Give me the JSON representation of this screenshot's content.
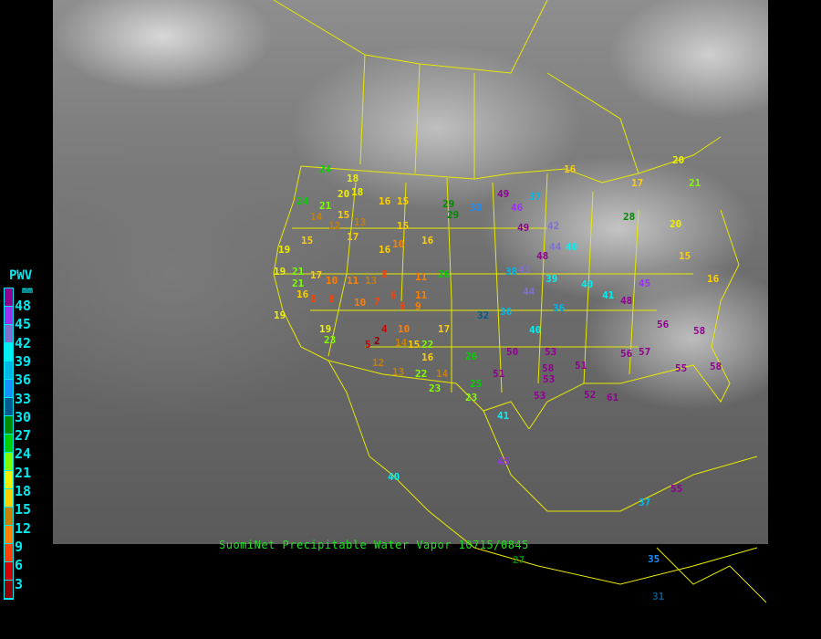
{
  "caption": "SuomiNet Precipitable Water Vapor  10715/0845",
  "legend": {
    "title": "PWV",
    "unit": "mm",
    "labels": [
      "48",
      "45",
      "42",
      "39",
      "36",
      "33",
      "30",
      "27",
      "24",
      "21",
      "18",
      "15",
      "12",
      "9",
      "6",
      "3"
    ],
    "colors": [
      "#900090",
      "#9a30f0",
      "#8070d0",
      "#00f0f0",
      "#00b8e8",
      "#1890ff",
      "#005a90",
      "#008a00",
      "#00d000",
      "#80ff00",
      "#f0f000",
      "#ffd000",
      "#c88000",
      "#ff8000",
      "#ff4000",
      "#d00000",
      "#8b0000"
    ]
  },
  "stations": [
    "24",
    "18",
    "24",
    "16",
    "20",
    "18",
    "16",
    "15",
    "14",
    "12",
    "13",
    "17",
    "15",
    "21",
    "15",
    "10",
    "16",
    "15",
    "19",
    "21",
    "17",
    "10",
    "11",
    "13",
    "8",
    "6",
    "11",
    "8",
    "19",
    "21",
    "16",
    "8",
    "10",
    "7",
    "6",
    "9",
    "17",
    "19",
    "19",
    "23",
    "4",
    "2",
    "12",
    "10",
    "5",
    "13",
    "16",
    "14",
    "22",
    "14",
    "25",
    "23",
    "26",
    "29",
    "33",
    "49",
    "46",
    "49",
    "42",
    "37",
    "44",
    "48",
    "40",
    "43",
    "36",
    "38",
    "39",
    "44",
    "40",
    "41",
    "48",
    "45",
    "40",
    "53",
    "56",
    "58",
    "53",
    "51",
    "57",
    "56",
    "55",
    "58",
    "50",
    "52",
    "61",
    "53",
    "51",
    "36",
    "41",
    "45",
    "40",
    "55",
    "37",
    "35",
    "31",
    "58",
    "20",
    "21",
    "20",
    "16",
    "15",
    "16",
    "17",
    "15",
    "22",
    "29",
    "26",
    "28",
    "32",
    "11",
    "23",
    "27"
  ]
}
